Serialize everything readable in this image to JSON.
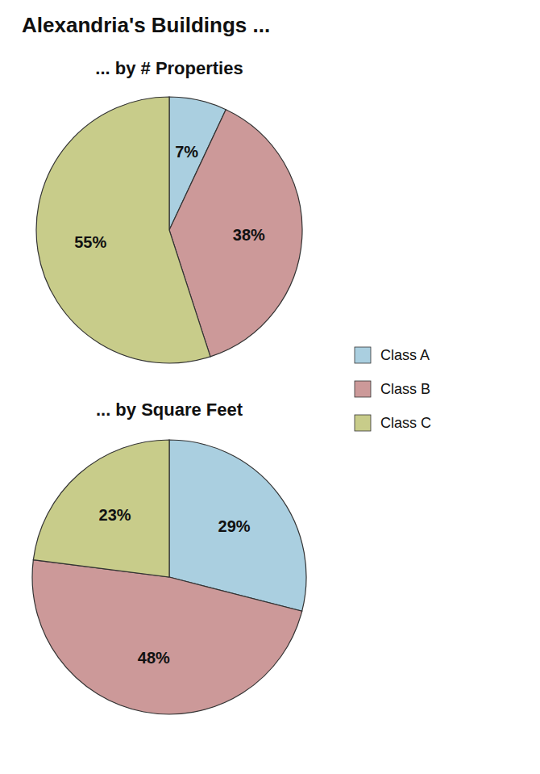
{
  "chart_data": [
    {
      "type": "pie",
      "title": "Alexandria's Buildings ...",
      "subtitle": "... by # Properties",
      "categories": [
        "Class A",
        "Class B",
        "Class C"
      ],
      "values": [
        7,
        38,
        55
      ],
      "value_labels": [
        "7%",
        "38%",
        "55%"
      ],
      "colors": [
        "#aacfe0",
        "#cc9999",
        "#c8cc8a"
      ],
      "legend": "right",
      "data_labels": true
    },
    {
      "type": "pie",
      "subtitle": "... by Square Feet",
      "categories": [
        "Class A",
        "Class B",
        "Class C"
      ],
      "values": [
        29,
        48,
        23
      ],
      "value_labels": [
        "29%",
        "48%",
        "23%"
      ],
      "colors": [
        "#aacfe0",
        "#cc9999",
        "#c8cc8a"
      ],
      "data_labels": true
    }
  ]
}
